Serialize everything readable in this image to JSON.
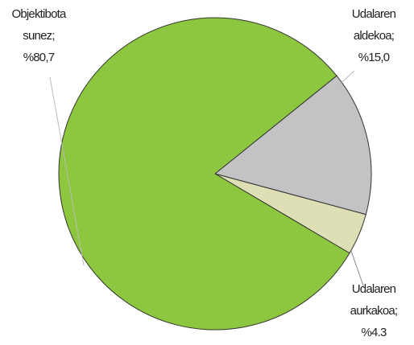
{
  "chart_data": {
    "type": "pie",
    "categories": [
      "Objektibota sunez;",
      "Udalaren aldekoa;",
      "Udalaren aurkakoa;"
    ],
    "values": [
      80.7,
      15.0,
      4.3
    ],
    "value_labels": [
      "%80,7",
      "%15,0",
      "%4.3"
    ],
    "colors": [
      "#8dc63f",
      "#c3c3c5",
      "#dedfb5"
    ]
  }
}
